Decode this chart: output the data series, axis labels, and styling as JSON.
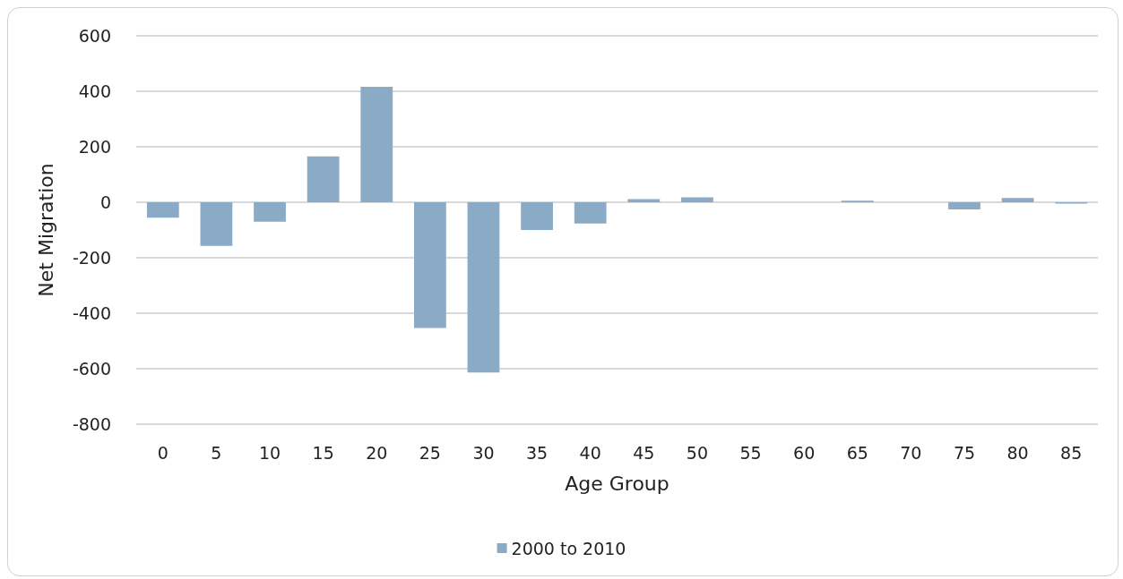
{
  "chart_data": {
    "type": "bar",
    "xlabel": "Age Group",
    "ylabel": "Net Migration",
    "categories": [
      "0",
      "5",
      "10",
      "15",
      "20",
      "25",
      "30",
      "35",
      "40",
      "45",
      "50",
      "55",
      "60",
      "65",
      "70",
      "75",
      "80",
      "85"
    ],
    "series": [
      {
        "name": "2000 to 2010",
        "color": "#8aaac6",
        "values": [
          -56,
          -157,
          -70,
          165,
          416,
          -453,
          -614,
          -100,
          -77,
          11,
          18,
          0,
          0,
          6,
          0,
          -26,
          15,
          -5
        ]
      }
    ],
    "ylim": [
      -800,
      600
    ],
    "yticks": [
      -800,
      -600,
      -400,
      -200,
      0,
      200,
      400,
      600
    ],
    "grid": "y",
    "legend": "bottom"
  }
}
